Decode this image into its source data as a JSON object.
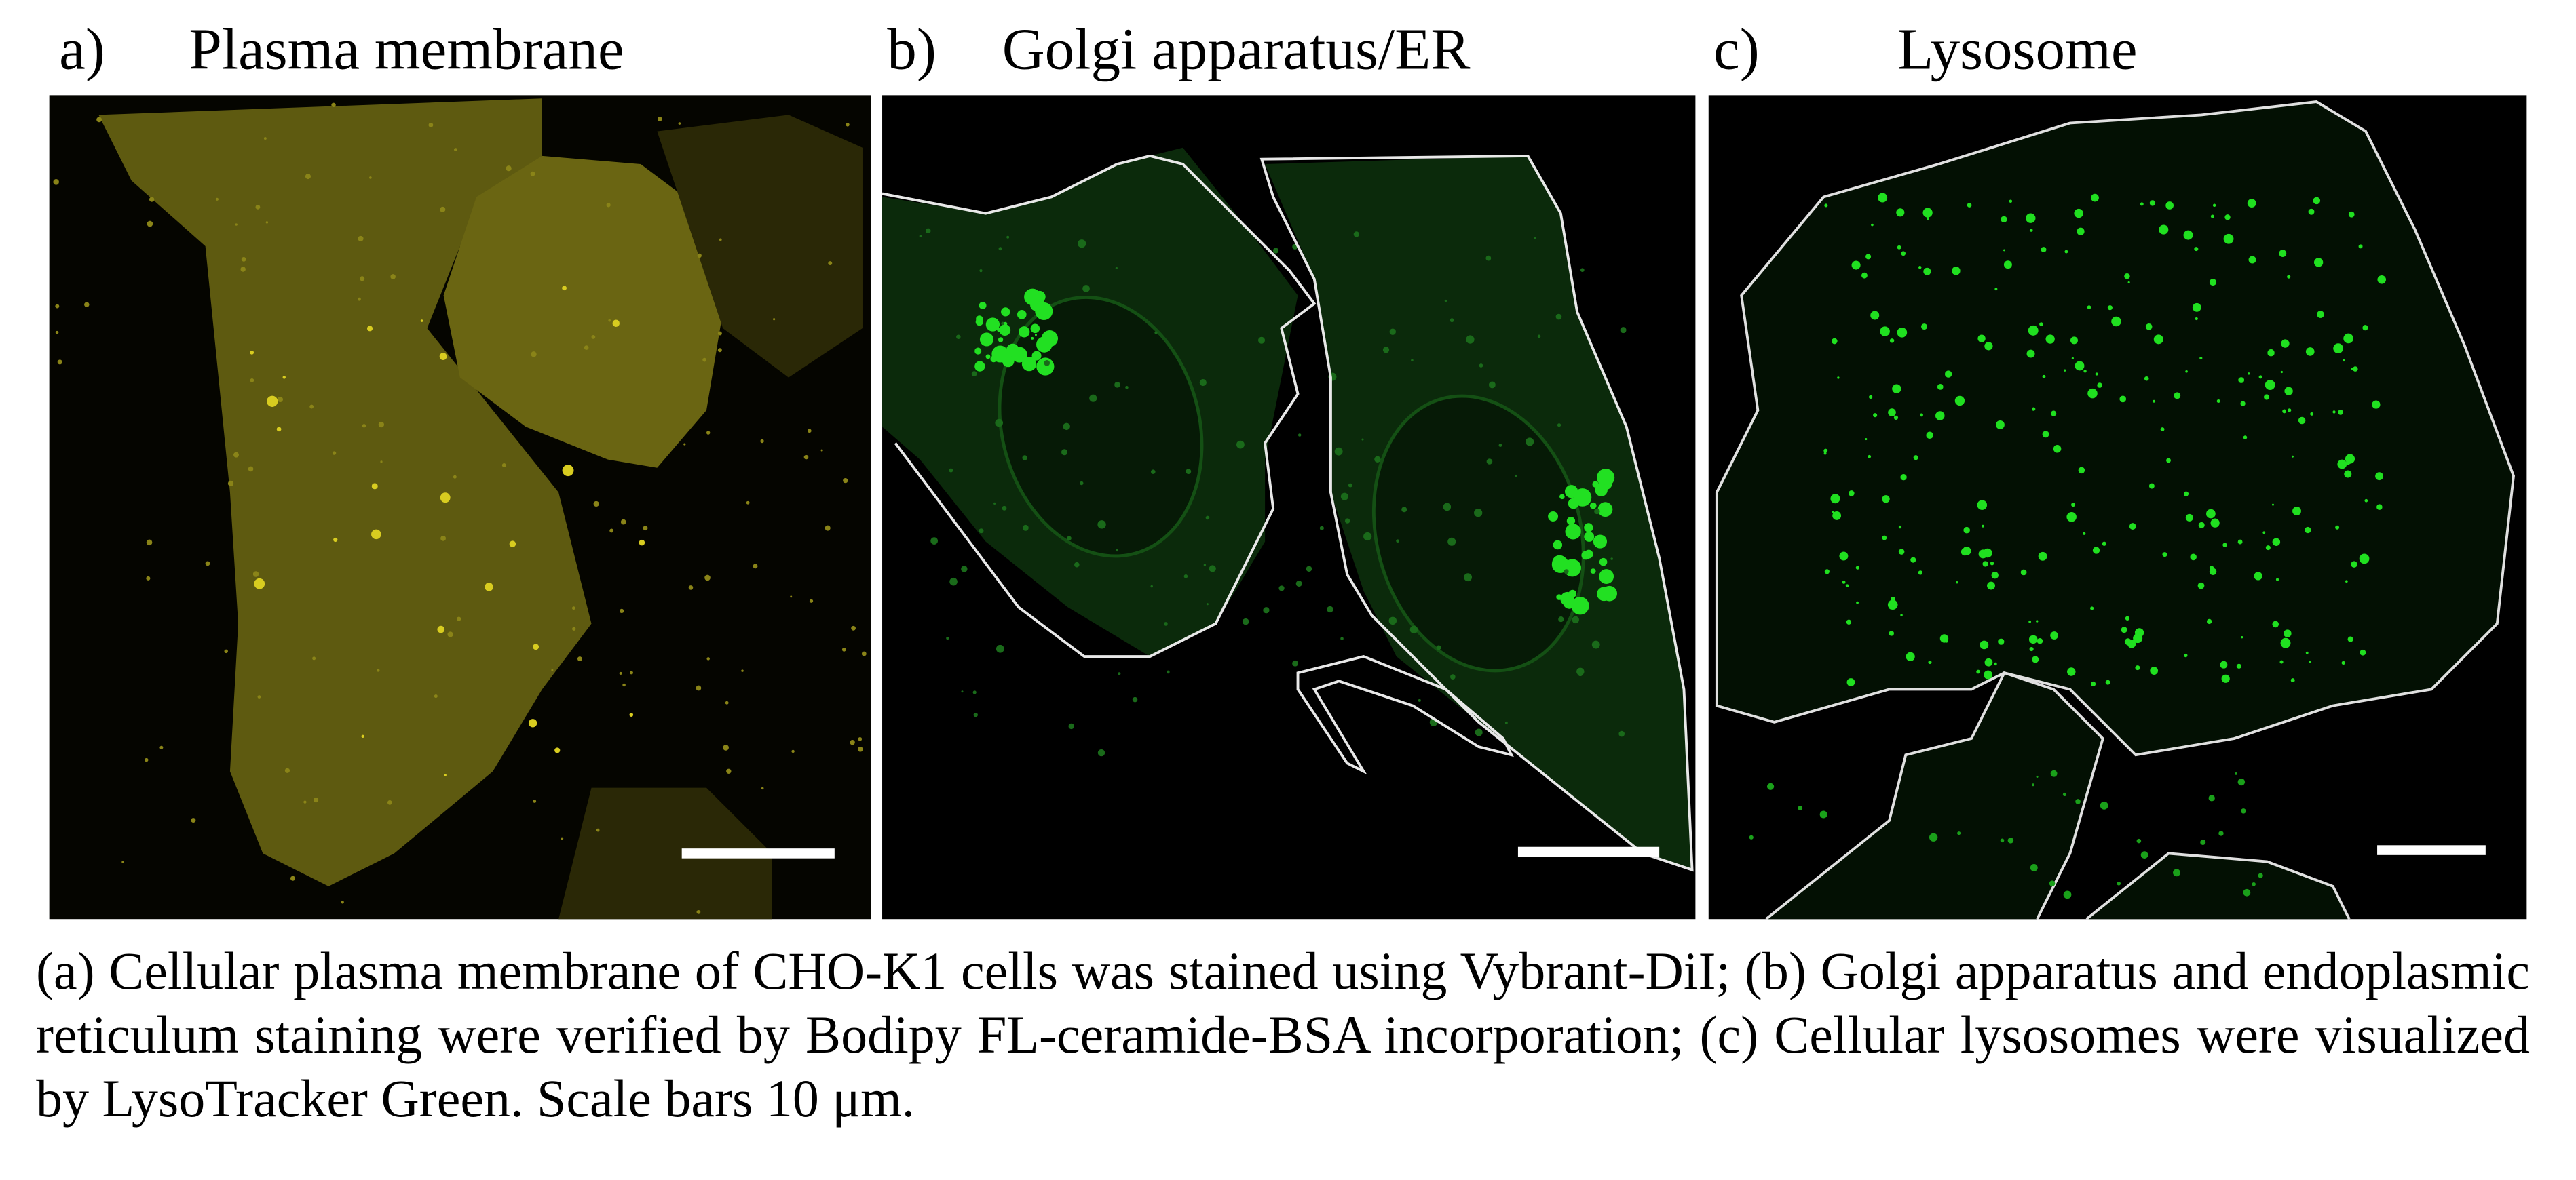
{
  "panels": [
    {
      "label": "a)",
      "title": "Plasma membrane"
    },
    {
      "label": "b)",
      "title": "Golgi apparatus/ER"
    },
    {
      "label": "c)",
      "title": "Lysosome"
    }
  ],
  "caption": "(a) Cellular plasma membrane of CHO-K1 cells was stained using Vybrant-DiI; (b) Golgi apparatus and endoplasmic reticulum staining were verified by Bodipy FL-ceramide-BSA incorporation; (c) Cellular lysosomes were visualized by LysoTracker Green. Scale bars 10 μm."
}
